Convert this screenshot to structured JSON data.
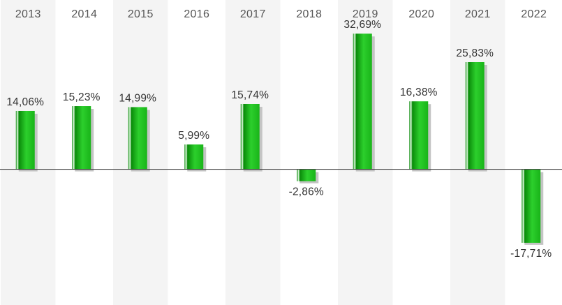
{
  "chart_data": {
    "type": "bar",
    "categories": [
      "2013",
      "2014",
      "2015",
      "2016",
      "2017",
      "2018",
      "2019",
      "2020",
      "2021",
      "2022"
    ],
    "values": [
      14.06,
      15.23,
      14.99,
      5.99,
      15.74,
      -2.86,
      32.69,
      16.38,
      25.83,
      -17.71
    ],
    "value_labels": [
      "14,06%",
      "15,23%",
      "14,99%",
      "5,99%",
      "15,74%",
      "-2,86%",
      "32,69%",
      "16,38%",
      "25,83%",
      "-17,71%"
    ],
    "title": "",
    "xlabel": "",
    "ylabel": "",
    "ylim": [
      -32.7,
      40.8
    ],
    "grid": false,
    "legend": "none",
    "colors": {
      "bar_dark": "#0a8a0a",
      "bar_mid": "#19b419",
      "bar_light": "#2ccf2c",
      "bar_highlight": "#eaffea",
      "shadow": "#c4c4c4",
      "zero_line": "#333333",
      "band": "#f4f4f4"
    }
  }
}
